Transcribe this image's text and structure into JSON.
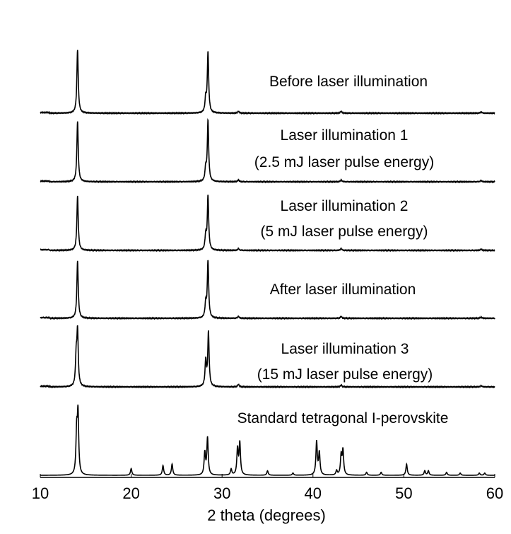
{
  "chart_data": {
    "type": "line",
    "xlabel": "2 theta (degrees)",
    "ylabel": "",
    "xlim": [
      10,
      60
    ],
    "x_ticks": [
      "10",
      "20",
      "30",
      "40",
      "50",
      "60"
    ],
    "grid": false,
    "stacked_offset": true,
    "line_color": "#000000",
    "series": [
      {
        "name": "Before laser illumination",
        "label_lines": [
          "Before laser illumination"
        ],
        "peaks": [
          [
            14.1,
            1.0
          ],
          [
            28.2,
            0.22
          ],
          [
            28.45,
            0.95
          ],
          [
            31.8,
            0.03
          ],
          [
            43.1,
            0.03
          ],
          [
            58.5,
            0.02
          ]
        ]
      },
      {
        "name": "Laser illumination 1 (2.5 mJ laser pulse energy)",
        "label_lines": [
          "Laser illumination 1",
          "(2.5 mJ laser pulse energy)"
        ],
        "peaks": [
          [
            14.1,
            0.95
          ],
          [
            28.2,
            0.2
          ],
          [
            28.45,
            0.95
          ],
          [
            31.8,
            0.03
          ],
          [
            43.1,
            0.03
          ],
          [
            58.5,
            0.02
          ]
        ]
      },
      {
        "name": "Laser illumination 2 (5 mJ laser pulse energy)",
        "label_lines": [
          "Laser illumination 2",
          "(5 mJ laser pulse energy)"
        ],
        "peaks": [
          [
            14.1,
            0.85
          ],
          [
            28.2,
            0.22
          ],
          [
            28.45,
            0.85
          ],
          [
            31.8,
            0.03
          ],
          [
            43.1,
            0.03
          ],
          [
            58.5,
            0.02
          ]
        ]
      },
      {
        "name": "After laser illumination",
        "label_lines": [
          "After laser illumination"
        ],
        "peaks": [
          [
            14.1,
            0.9
          ],
          [
            28.2,
            0.22
          ],
          [
            28.45,
            0.9
          ],
          [
            31.8,
            0.03
          ],
          [
            43.1,
            0.03
          ],
          [
            58.5,
            0.02
          ]
        ]
      },
      {
        "name": "Laser illumination 3 (15 mJ laser pulse energy)",
        "label_lines": [
          "Laser illumination 3",
          "(15 mJ laser pulse energy)"
        ],
        "peaks": [
          [
            13.95,
            0.45
          ],
          [
            14.1,
            0.85
          ],
          [
            28.2,
            0.4
          ],
          [
            28.5,
            0.85
          ],
          [
            31.8,
            0.04
          ],
          [
            43.1,
            0.03
          ],
          [
            58.5,
            0.02
          ]
        ]
      },
      {
        "name": "Standard tetragonal I-perovskite",
        "label_lines": [
          "Standard tetragonal I-perovskite"
        ],
        "peaks": [
          [
            14.0,
            0.55
          ],
          [
            14.15,
            0.8
          ],
          [
            20.0,
            0.09
          ],
          [
            23.5,
            0.13
          ],
          [
            24.5,
            0.15
          ],
          [
            28.1,
            0.3
          ],
          [
            28.4,
            0.5
          ],
          [
            31.0,
            0.08
          ],
          [
            31.7,
            0.35
          ],
          [
            31.95,
            0.43
          ],
          [
            35.0,
            0.06
          ],
          [
            37.8,
            0.03
          ],
          [
            40.4,
            0.45
          ],
          [
            40.7,
            0.3
          ],
          [
            42.6,
            0.06
          ],
          [
            43.1,
            0.26
          ],
          [
            43.3,
            0.33
          ],
          [
            45.9,
            0.04
          ],
          [
            47.5,
            0.04
          ],
          [
            50.3,
            0.15
          ],
          [
            52.3,
            0.06
          ],
          [
            52.7,
            0.06
          ],
          [
            54.7,
            0.04
          ],
          [
            56.2,
            0.03
          ],
          [
            58.3,
            0.03
          ],
          [
            58.9,
            0.03
          ]
        ]
      }
    ]
  }
}
